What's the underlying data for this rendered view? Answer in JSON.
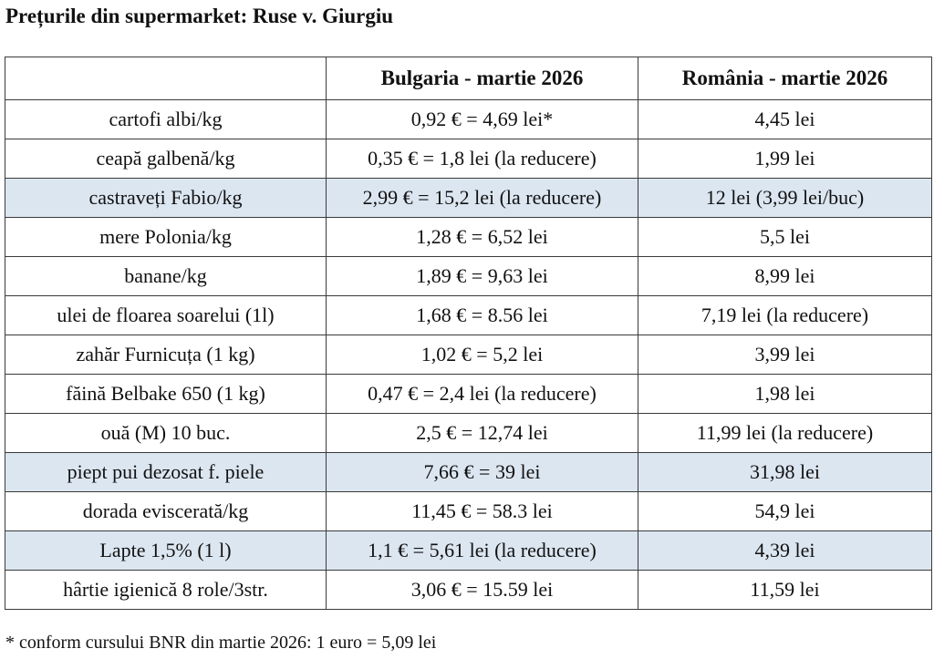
{
  "title": "Prețurile din supermarket: Ruse v. Giurgiu",
  "table": {
    "headers": [
      "",
      "Bulgaria - martie 2026",
      "România - martie 2026"
    ],
    "highlight_color": "#dce6f1",
    "rows": [
      {
        "product": "cartofi albi/kg",
        "bulgaria": "0,92 € = 4,69 lei*",
        "romania": "4,45 lei",
        "highlight": false
      },
      {
        "product": "ceapă galbenă/kg",
        "bulgaria": "0,35 € = 1,8 lei (la reducere)",
        "romania": "1,99 lei",
        "highlight": false
      },
      {
        "product": "castraveți Fabio/kg",
        "bulgaria": "2,99 € = 15,2 lei (la reducere)",
        "romania": "12 lei (3,99 lei/buc)",
        "highlight": true
      },
      {
        "product": "mere Polonia/kg",
        "bulgaria": "1,28 € = 6,52 lei",
        "romania": "5,5 lei",
        "highlight": false
      },
      {
        "product": "banane/kg",
        "bulgaria": "1,89 € = 9,63 lei",
        "romania": "8,99 lei",
        "highlight": false
      },
      {
        "product": "ulei de floarea soarelui (1l)",
        "bulgaria": "1,68 € = 8.56 lei",
        "romania": "7,19 lei (la reducere)",
        "highlight": false
      },
      {
        "product": "zahăr Furnicuța (1 kg)",
        "bulgaria": "1,02 € = 5,2 lei",
        "romania": "3,99 lei",
        "highlight": false
      },
      {
        "product": "făină Belbake 650 (1 kg)",
        "bulgaria": "0,47 € = 2,4 lei (la reducere)",
        "romania": "1,98 lei",
        "highlight": false
      },
      {
        "product": "ouă (M) 10 buc.",
        "bulgaria": "2,5 € = 12,74 lei",
        "romania": "11,99 lei (la reducere)",
        "highlight": false
      },
      {
        "product": "piept pui dezosat f. piele",
        "bulgaria": "7,66 € = 39 lei",
        "romania": "31,98 lei",
        "highlight": true
      },
      {
        "product": "dorada eviscerată/kg",
        "bulgaria": "11,45 € = 58.3 lei",
        "romania": "54,9 lei",
        "highlight": false
      },
      {
        "product": "Lapte 1,5% (1 l)",
        "bulgaria": "1,1 € = 5,61 lei (la reducere)",
        "romania": "4,39 lei",
        "highlight": true
      },
      {
        "product": "hârtie igienică 8 role/3str.",
        "bulgaria": "3,06 € = 15.59 lei",
        "romania": "11,59 lei",
        "highlight": false
      }
    ]
  },
  "footnote": "* conform cursului BNR din martie 2026: 1 euro = 5,09 lei"
}
